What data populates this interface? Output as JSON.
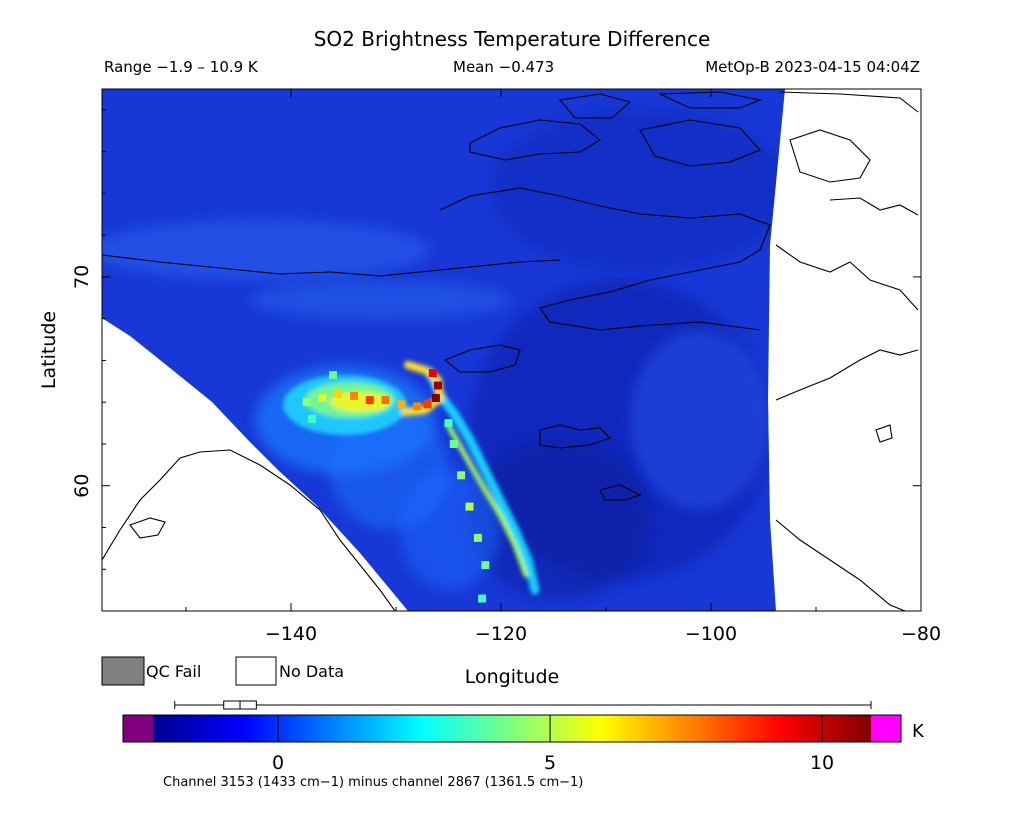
{
  "chart_data": {
    "type": "heatmap",
    "title": "SO2 Brightness Temperature Difference",
    "header": {
      "range_text": "Range −1.9 – 10.9 K",
      "mean_text": "Mean −0.473",
      "satellite_time": "MetOp-B 2023-04-15 04:04Z"
    },
    "xlabel": "Longitude",
    "ylabel": "Latitude",
    "xlim": [
      -158,
      -80
    ],
    "ylim": [
      54,
      79
    ],
    "x_ticks": [
      -140,
      -120,
      -100,
      -80
    ],
    "x_tick_labels": [
      "−140",
      "−120",
      "−100",
      "−80"
    ],
    "y_ticks": [
      60,
      70
    ],
    "y_tick_labels": [
      "60",
      "70"
    ],
    "grid": false,
    "legend": [
      {
        "label": "QC Fail",
        "color": "#808080"
      },
      {
        "label": "No Data",
        "color": "#ffffff"
      }
    ],
    "colorbar": {
      "min": -2.3,
      "max": 10.9,
      "unit": "K",
      "ticks": [
        0,
        5,
        10
      ],
      "tick_labels": [
        "0",
        "5",
        "10"
      ],
      "under_color": "#800080",
      "over_color": "#ff00ff",
      "colormap": "jet"
    },
    "boxplot": {
      "whisker_low": -1.9,
      "q1": -1.0,
      "median": -0.7,
      "q3": -0.4,
      "whisker_high": 10.9
    },
    "background_value": 0.1,
    "so2_plume_points": [
      {
        "lon": -126.5,
        "lat": 65.4,
        "value": 9.5
      },
      {
        "lon": -126.0,
        "lat": 64.8,
        "value": 10.5
      },
      {
        "lon": -126.2,
        "lat": 64.2,
        "value": 10.9
      },
      {
        "lon": -127.0,
        "lat": 63.9,
        "value": 8.5
      },
      {
        "lon": -128.0,
        "lat": 63.8,
        "value": 7.5
      },
      {
        "lon": -129.5,
        "lat": 63.9,
        "value": 7.0
      },
      {
        "lon": -131.0,
        "lat": 64.1,
        "value": 7.8
      },
      {
        "lon": -132.5,
        "lat": 64.1,
        "value": 8.5
      },
      {
        "lon": -134.0,
        "lat": 64.3,
        "value": 7.5
      },
      {
        "lon": -135.5,
        "lat": 64.4,
        "value": 6.5
      },
      {
        "lon": -137.0,
        "lat": 64.2,
        "value": 5.5
      },
      {
        "lon": -138.5,
        "lat": 64.0,
        "value": 4.5
      },
      {
        "lon": -136.0,
        "lat": 65.3,
        "value": 4.0
      },
      {
        "lon": -138.0,
        "lat": 63.2,
        "value": 3.5
      },
      {
        "lon": -125.0,
        "lat": 63.0,
        "value": 3.5
      },
      {
        "lon": -124.5,
        "lat": 62.0,
        "value": 4.0
      },
      {
        "lon": -123.8,
        "lat": 60.5,
        "value": 4.5
      },
      {
        "lon": -123.0,
        "lat": 59.0,
        "value": 5.0
      },
      {
        "lon": -122.2,
        "lat": 57.5,
        "value": 4.5
      },
      {
        "lon": -121.5,
        "lat": 56.2,
        "value": 4.0
      },
      {
        "lon": -121.8,
        "lat": 54.6,
        "value": 3.5
      }
    ],
    "channel_note": "Channel 3153 (1433 cm−1) minus channel 2867 (1361.5 cm−1)"
  }
}
